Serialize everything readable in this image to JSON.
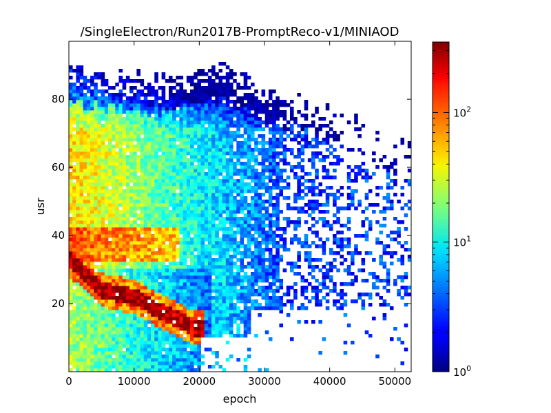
{
  "chart_data": {
    "type": "heatmap",
    "title": "/SingleElectron/Run2017B-PromptReco-v1/MINIAOD",
    "xlabel": "epoch",
    "ylabel": "usr",
    "xlim": [
      0,
      52500
    ],
    "ylim": [
      0,
      97
    ],
    "x_ticks": [
      0,
      10000,
      20000,
      30000,
      40000,
      50000
    ],
    "x_tick_labels": [
      "0",
      "10000",
      "20000",
      "30000",
      "40000",
      "50000"
    ],
    "y_ticks": [
      20,
      40,
      60,
      80
    ],
    "y_tick_labels": [
      "20",
      "40",
      "60",
      "80"
    ],
    "colorbar": {
      "scale": "log",
      "range": [
        1,
        350
      ],
      "ticks": [
        {
          "value": 1,
          "base": "10",
          "exp": "0"
        },
        {
          "value": 10,
          "base": "10",
          "exp": "1"
        },
        {
          "value": 100,
          "base": "10",
          "exp": "2"
        }
      ],
      "colormap": "jet"
    },
    "bins": {
      "nx": 96,
      "ny": 96
    },
    "structure_description_values": {
      "dense_band": [
        [
          0,
          33
        ],
        [
          2000,
          30
        ],
        [
          5000,
          24
        ],
        [
          10000,
          22
        ],
        [
          15000,
          17
        ],
        [
          19000,
          13
        ]
      ],
      "upper_edge": [
        [
          0,
          89
        ],
        [
          15000,
          86
        ],
        [
          25000,
          90
        ],
        [
          30000,
          84
        ],
        [
          40000,
          78
        ],
        [
          52500,
          66
        ]
      ]
    }
  }
}
